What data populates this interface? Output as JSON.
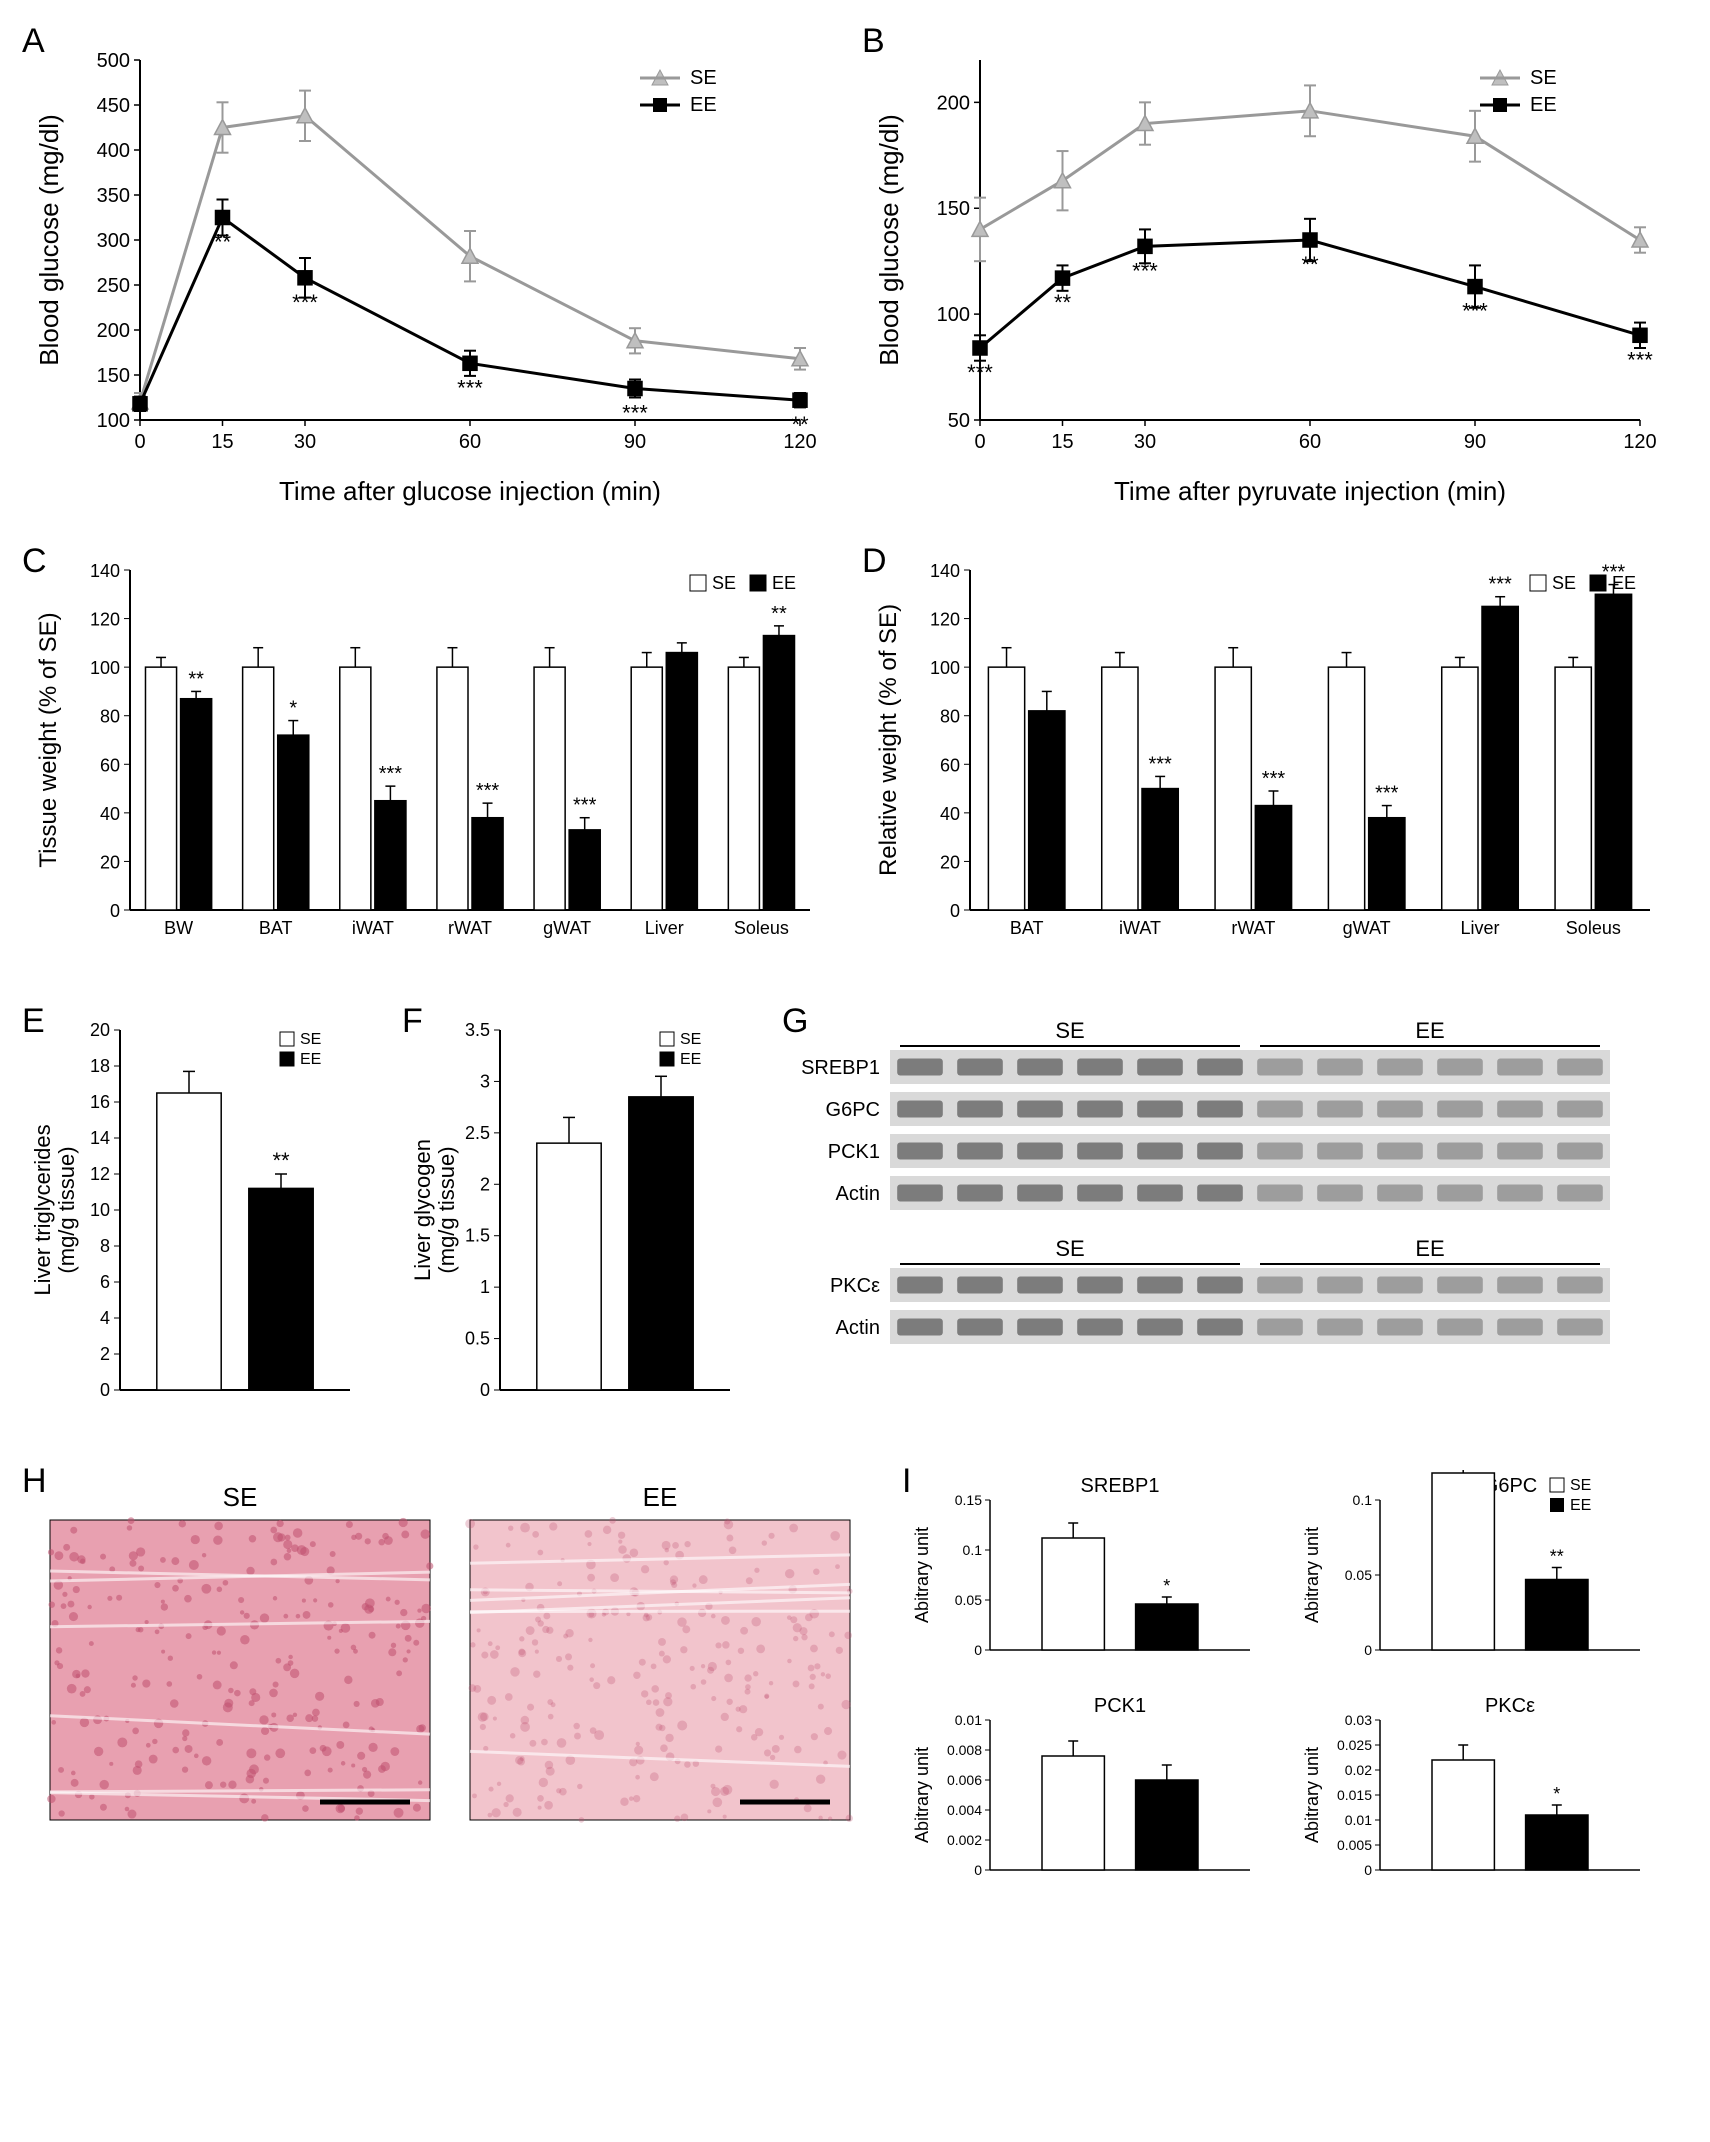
{
  "colors": {
    "se_line": "#999999",
    "ee_line": "#000000",
    "se_marker_fill": "#bfbfbf",
    "ee_marker_fill": "#000000",
    "se_bar_fill": "#ffffff",
    "ee_bar_fill": "#000000",
    "bar_stroke": "#000000",
    "axis": "#000000",
    "histology_se": "#e8a0b0",
    "histology_ee": "#f2c4cc",
    "blot_band": "#6b6b6b",
    "blot_bg": "#d9d9d9"
  },
  "legend": {
    "se": "SE",
    "ee": "EE"
  },
  "panelA": {
    "label": "A",
    "ylabel": "Blood glucose (mg/dl)",
    "xlabel": "Time after glucose injection (min)",
    "xticks": [
      0,
      15,
      30,
      60,
      90,
      120
    ],
    "yticks": [
      100,
      150,
      200,
      250,
      300,
      350,
      400,
      450,
      500
    ],
    "ylim": [
      100,
      500
    ],
    "se": {
      "x": [
        0,
        15,
        30,
        60,
        90,
        120
      ],
      "y": [
        120,
        425,
        438,
        282,
        188,
        168
      ],
      "err": [
        10,
        28,
        28,
        28,
        14,
        12
      ]
    },
    "ee": {
      "x": [
        0,
        15,
        30,
        60,
        90,
        120
      ],
      "y": [
        118,
        325,
        258,
        163,
        135,
        122
      ],
      "err": [
        8,
        20,
        22,
        14,
        10,
        8
      ]
    },
    "sig": [
      "",
      "**",
      "***",
      "***",
      "***",
      "**"
    ]
  },
  "panelB": {
    "label": "B",
    "ylabel": "Blood glucose (mg/dl)",
    "xlabel": "Time after pyruvate injection (min)",
    "xticks": [
      0,
      15,
      30,
      60,
      90,
      120
    ],
    "yticks": [
      50,
      100,
      150,
      200
    ],
    "ylim": [
      50,
      220
    ],
    "se": {
      "x": [
        0,
        15,
        30,
        60,
        90,
        120
      ],
      "y": [
        140,
        163,
        190,
        196,
        184,
        135
      ],
      "err": [
        15,
        14,
        10,
        12,
        12,
        6
      ]
    },
    "ee": {
      "x": [
        0,
        15,
        30,
        60,
        90,
        120
      ],
      "y": [
        84,
        117,
        132,
        135,
        113,
        90
      ],
      "err": [
        6,
        6,
        8,
        10,
        10,
        6
      ]
    },
    "sig": [
      "***",
      "**",
      "***",
      "**",
      "***",
      "***"
    ]
  },
  "panelC": {
    "label": "C",
    "ylabel": "Tissue weight (% of SE)",
    "yticks": [
      0,
      20,
      40,
      60,
      80,
      100,
      120,
      140
    ],
    "categories": [
      "BW",
      "BAT",
      "iWAT",
      "rWAT",
      "gWAT",
      "Liver",
      "Soleus"
    ],
    "se": {
      "y": [
        100,
        100,
        100,
        100,
        100,
        100,
        100
      ],
      "err": [
        4,
        8,
        8,
        8,
        8,
        6,
        4
      ]
    },
    "ee": {
      "y": [
        87,
        72,
        45,
        38,
        33,
        106,
        113
      ],
      "err": [
        3,
        6,
        6,
        6,
        5,
        4,
        4
      ]
    },
    "sig": [
      "**",
      "*",
      "***",
      "***",
      "***",
      "",
      "**"
    ]
  },
  "panelD": {
    "label": "D",
    "ylabel": "Relative weight (% of SE)",
    "yticks": [
      0,
      20,
      40,
      60,
      80,
      100,
      120,
      140
    ],
    "categories": [
      "BAT",
      "iWAT",
      "rWAT",
      "gWAT",
      "Liver",
      "Soleus"
    ],
    "se": {
      "y": [
        100,
        100,
        100,
        100,
        100,
        100
      ],
      "err": [
        8,
        6,
        8,
        6,
        4,
        4
      ]
    },
    "ee": {
      "y": [
        82,
        50,
        43,
        38,
        125,
        130
      ],
      "err": [
        8,
        5,
        6,
        5,
        4,
        4
      ]
    },
    "sig": [
      "",
      "***",
      "***",
      "***",
      "***",
      "***"
    ]
  },
  "panelE": {
    "label": "E",
    "ylabel": "Liver triglycerides\n(mg/g tissue)",
    "yticks": [
      0,
      2,
      4,
      6,
      8,
      10,
      12,
      14,
      16,
      18,
      20
    ],
    "se": {
      "y": 16.5,
      "err": 1.2
    },
    "ee": {
      "y": 11.2,
      "err": 0.8
    },
    "sig": "**"
  },
  "panelF": {
    "label": "F",
    "ylabel": "Liver glycogen\n(mg/g tissue)",
    "yticks": [
      0,
      0.5,
      1,
      1.5,
      2,
      2.5,
      3,
      3.5
    ],
    "se": {
      "y": 2.4,
      "err": 0.25
    },
    "ee": {
      "y": 2.85,
      "err": 0.2
    },
    "sig": ""
  },
  "panelG": {
    "label": "G",
    "groups": [
      "SE",
      "EE"
    ],
    "lanes_per_group": 6,
    "block1_rows": [
      "SREBP1",
      "G6PC",
      "PCK1",
      "Actin"
    ],
    "block2_rows": [
      "PKCε",
      "Actin"
    ]
  },
  "panelH": {
    "label": "H",
    "groups": [
      "SE",
      "EE"
    ]
  },
  "panelI": {
    "label": "I",
    "charts": [
      {
        "title": "SREBP1",
        "ylabel": "Abitrary unit",
        "yticks": [
          0,
          0.05,
          0.1,
          0.15
        ],
        "se": {
          "y": 0.112,
          "err": 0.015
        },
        "ee": {
          "y": 0.046,
          "err": 0.007
        },
        "sig": "*"
      },
      {
        "title": "G6PC",
        "ylabel": "Abitrary unit",
        "yticks": [
          0,
          0.05,
          0.1
        ],
        "se": {
          "y": 0.118,
          "err": 0.014
        },
        "ee": {
          "y": 0.047,
          "err": 0.008
        },
        "sig": "**"
      },
      {
        "title": "PCK1",
        "ylabel": "Abitrary unit",
        "yticks": [
          0,
          0.002,
          0.004,
          0.006,
          0.008,
          0.01
        ],
        "se": {
          "y": 0.0076,
          "err": 0.001
        },
        "ee": {
          "y": 0.006,
          "err": 0.001
        },
        "sig": ""
      },
      {
        "title": "PKCε",
        "ylabel": "Abitrary unit",
        "yticks": [
          0,
          0.005,
          0.01,
          0.015,
          0.02,
          0.025,
          0.03
        ],
        "se": {
          "y": 0.022,
          "err": 0.003
        },
        "ee": {
          "y": 0.011,
          "err": 0.002
        },
        "sig": "*"
      }
    ]
  }
}
